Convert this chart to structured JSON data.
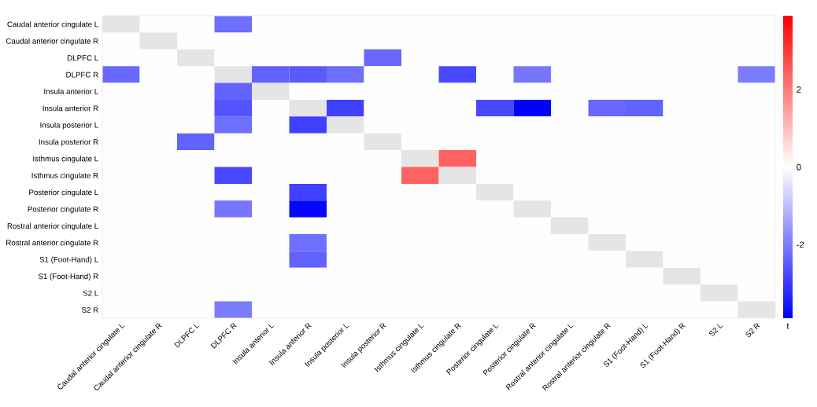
{
  "chart_data": {
    "type": "heatmap",
    "categories": [
      "Caudal anterior cingulate L",
      "Caudal anterior cingulate R",
      "DLPFC L",
      "DLPFC R",
      "Insula anterior L",
      "Insula anterior R",
      "Insula posterior L",
      "Insula posterior R",
      "Isthmus cingulate L",
      "Isthmus cingulate R",
      "Posterior cingulate L",
      "Posterior cingulate R",
      "Rostral anterior cingulate L",
      "Rostral anterior cingulate R",
      "S1 (Foot-Hand) L",
      "S1 (Foot-Hand) R",
      "S2 L",
      "S2 R"
    ],
    "y_categories": [
      "Caudal anterior cingulate L",
      "Caudal anterior cingulate R",
      "DLPFC L",
      "DLPFC R",
      "Insula anterior L",
      "Insula anterior R",
      "Insula posterior L",
      "Insula posterior R",
      "Isthmus cingulate L",
      "Isthmus cingulate R",
      "Posterior cingulate L",
      "Posterior cingulate R",
      "Rostral anterior cingulate L",
      "Rostral anterior cingulate R",
      "S1 (Foot-Hand) L",
      "S1 (Foot-Hand) R",
      "S2 L",
      "S2 R"
    ],
    "cells": [
      [
        null,
        0,
        0,
        -2.2,
        0,
        0,
        0,
        0,
        0,
        0,
        0,
        0,
        0,
        0,
        0,
        0,
        0,
        0
      ],
      [
        0,
        null,
        0,
        0,
        0,
        0,
        0,
        0,
        0,
        0,
        0,
        0,
        0,
        0,
        0,
        0,
        0,
        0
      ],
      [
        0,
        0,
        null,
        0,
        0,
        0,
        0,
        -2.3,
        0,
        0,
        0,
        0,
        0,
        0,
        0,
        0,
        0,
        0
      ],
      [
        -2.3,
        0,
        0,
        null,
        -2.4,
        -2.5,
        -2.2,
        0,
        0,
        -2.8,
        0,
        -2.1,
        0,
        0,
        0,
        0,
        0,
        -2.0
      ],
      [
        0,
        0,
        0,
        -2.4,
        null,
        0,
        0,
        0,
        0,
        0,
        0,
        0,
        0,
        0,
        0,
        0,
        0,
        0
      ],
      [
        0,
        0,
        0,
        -2.6,
        0,
        null,
        -2.9,
        0,
        0,
        0,
        -2.8,
        -3.9,
        0,
        -2.3,
        -2.4,
        0,
        0,
        0
      ],
      [
        0,
        0,
        0,
        -2.2,
        0,
        -2.9,
        null,
        0,
        0,
        0,
        0,
        0,
        0,
        0,
        0,
        0,
        0,
        0
      ],
      [
        0,
        0,
        -2.4,
        0,
        0,
        0,
        0,
        null,
        0,
        0,
        0,
        0,
        0,
        0,
        0,
        0,
        0,
        0
      ],
      [
        0,
        0,
        0,
        0,
        0,
        0,
        0,
        0,
        null,
        2.4,
        0,
        0,
        0,
        0,
        0,
        0,
        0,
        0
      ],
      [
        0,
        0,
        0,
        -2.8,
        0,
        0,
        0,
        0,
        2.4,
        null,
        0,
        0,
        0,
        0,
        0,
        0,
        0,
        0
      ],
      [
        0,
        0,
        0,
        0,
        0,
        -2.9,
        0,
        0,
        0,
        0,
        null,
        0,
        0,
        0,
        0,
        0,
        0,
        0
      ],
      [
        0,
        0,
        0,
        -2.1,
        0,
        -3.8,
        0,
        0,
        0,
        0,
        0,
        null,
        0,
        0,
        0,
        0,
        0,
        0
      ],
      [
        0,
        0,
        0,
        0,
        0,
        0,
        0,
        0,
        0,
        0,
        0,
        0,
        null,
        0,
        0,
        0,
        0,
        0
      ],
      [
        0,
        0,
        0,
        0,
        0,
        -2.2,
        0,
        0,
        0,
        0,
        0,
        0,
        0,
        null,
        0,
        0,
        0,
        0
      ],
      [
        0,
        0,
        0,
        0,
        0,
        -2.4,
        0,
        0,
        0,
        0,
        0,
        0,
        0,
        0,
        null,
        0,
        0,
        0
      ],
      [
        0,
        0,
        0,
        0,
        0,
        0,
        0,
        0,
        0,
        0,
        0,
        0,
        0,
        0,
        0,
        null,
        0,
        0
      ],
      [
        0,
        0,
        0,
        0,
        0,
        0,
        0,
        0,
        0,
        0,
        0,
        0,
        0,
        0,
        0,
        0,
        null,
        0
      ],
      [
        0,
        0,
        0,
        -2.0,
        0,
        0,
        0,
        0,
        0,
        0,
        0,
        0,
        0,
        0,
        0,
        0,
        0,
        null
      ]
    ],
    "clim": [
      -3.9,
      3.9
    ],
    "cticks": [
      -2,
      0,
      2
    ],
    "clabel": "t"
  }
}
